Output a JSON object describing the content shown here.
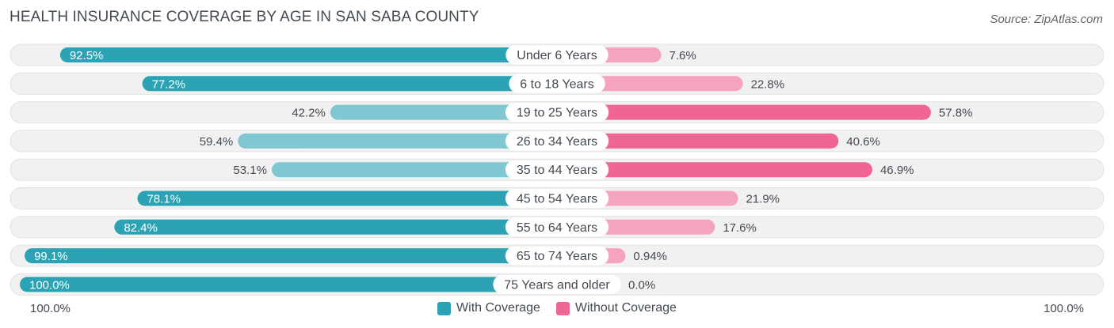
{
  "title": "HEALTH INSURANCE COVERAGE BY AGE IN SAN SABA COUNTY",
  "source": "Source: ZipAtlas.com",
  "colors": {
    "with_dark": "#2ba3b5",
    "with_light": "#7fc8d3",
    "without_dark": "#f06592",
    "without_light": "#f6a4be",
    "row_bg": "#eeeeef"
  },
  "legend": {
    "with_label": "With Coverage",
    "without_label": "Without Coverage"
  },
  "axis": {
    "left_label": "100.0%",
    "right_label": "100.0%"
  },
  "chart_data": {
    "type": "bar",
    "orientation": "horizontal-diverging",
    "title": "HEALTH INSURANCE COVERAGE BY AGE IN SAN SABA COUNTY",
    "categories": [
      "Under 6 Years",
      "6 to 18 Years",
      "19 to 25 Years",
      "26 to 34 Years",
      "35 to 44 Years",
      "45 to 54 Years",
      "55 to 64 Years",
      "65 to 74 Years",
      "75 Years and older"
    ],
    "series": [
      {
        "name": "With Coverage",
        "values": [
          92.5,
          77.2,
          42.2,
          59.4,
          53.1,
          78.1,
          82.4,
          99.1,
          100.0
        ],
        "labels": [
          "92.5%",
          "77.2%",
          "42.2%",
          "59.4%",
          "53.1%",
          "78.1%",
          "82.4%",
          "99.1%",
          "100.0%"
        ]
      },
      {
        "name": "Without Coverage",
        "values": [
          7.6,
          22.8,
          57.8,
          40.6,
          46.9,
          21.9,
          17.6,
          0.94,
          0.0
        ],
        "labels": [
          "7.6%",
          "22.8%",
          "57.8%",
          "40.6%",
          "46.9%",
          "21.9%",
          "17.6%",
          "0.94%",
          "0.0%"
        ]
      }
    ],
    "xlim": [
      -100,
      100
    ],
    "legend_position": "bottom-center"
  }
}
